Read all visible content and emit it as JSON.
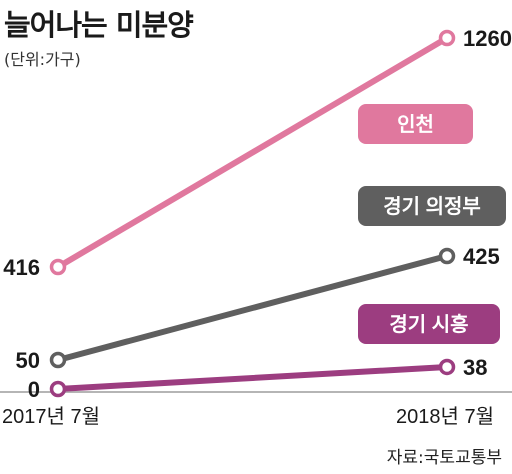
{
  "title": "늘어나는 미분양",
  "unit": "(단위:가구)",
  "source": "자료:국토교통부",
  "chart_data": {
    "type": "line",
    "x": [
      "2017년 7월",
      "2018년 7월"
    ],
    "series": [
      {
        "name": "인천",
        "values": [
          416,
          1260
        ],
        "color": "#e0789e"
      },
      {
        "name": "경기 의정부",
        "values": [
          50,
          425
        ],
        "color": "#5f5f5f"
      },
      {
        "name": "경기 시흥",
        "values": [
          0,
          38
        ],
        "color": "#9c3d80"
      }
    ],
    "ylim": [
      0,
      1260
    ]
  }
}
